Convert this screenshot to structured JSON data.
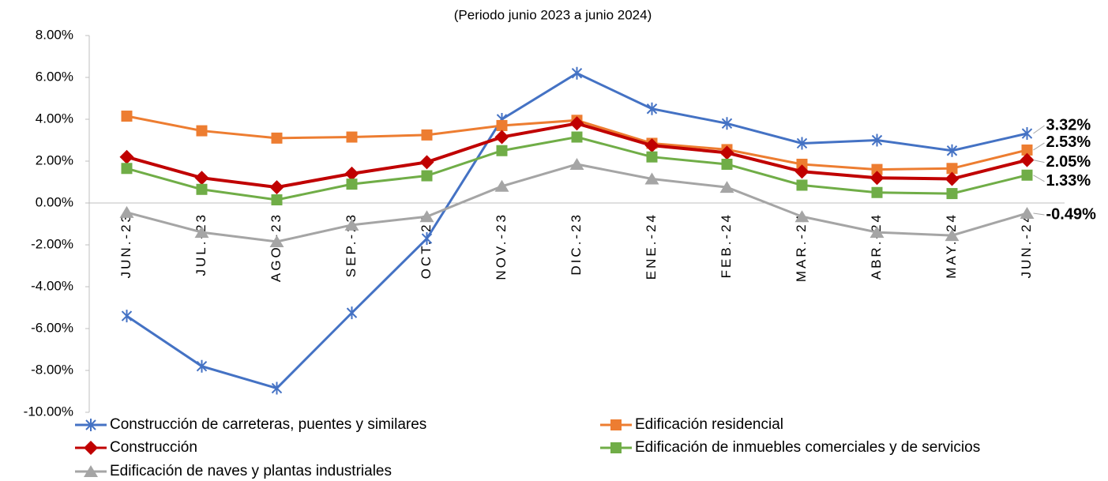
{
  "chart_data": {
    "type": "line",
    "title": "(Periodo junio 2023 a junio 2024)",
    "categories": [
      "JUN.-23",
      "JUL.-23",
      "AGO.-23",
      "SEP.-23",
      "OCT.-23",
      "NOV.-23",
      "DIC.-23",
      "ENE.-24",
      "FEB.-24",
      "MAR.-24",
      "ABR.-24",
      "MAY.-24",
      "JUN.-24"
    ],
    "ylim": [
      -10,
      8
    ],
    "yticks": [
      {
        "value": -10,
        "label": "-10.00%"
      },
      {
        "value": -8,
        "label": "-8.00%"
      },
      {
        "value": -6,
        "label": "-6.00%"
      },
      {
        "value": -4,
        "label": "-4.00%"
      },
      {
        "value": -2,
        "label": "-2.00%"
      },
      {
        "value": 0,
        "label": "0.00%"
      },
      {
        "value": 2,
        "label": "2.00%"
      },
      {
        "value": 4,
        "label": "4.00%"
      },
      {
        "value": 6,
        "label": "6.00%"
      },
      {
        "value": 8,
        "label": "8.00%"
      }
    ],
    "grid": false,
    "legend": "bottom",
    "series": [
      {
        "name": "Construcción de carreteras, puentes y similares",
        "color": "#4472c4",
        "marker": "star",
        "values": [
          -5.4,
          -7.8,
          -8.85,
          -5.25,
          -1.7,
          4.0,
          6.2,
          4.5,
          3.8,
          2.85,
          3.0,
          2.5,
          3.32
        ],
        "value_labels": [
          null,
          null,
          null,
          null,
          null,
          null,
          null,
          null,
          null,
          null,
          null,
          null,
          "3.32%"
        ]
      },
      {
        "name": "Edificación residencial",
        "color": "#ed7d31",
        "marker": "square",
        "values": [
          4.15,
          3.45,
          3.1,
          3.15,
          3.25,
          3.7,
          3.95,
          2.85,
          2.55,
          1.85,
          1.6,
          1.65,
          2.53
        ],
        "value_labels": [
          null,
          null,
          null,
          null,
          null,
          null,
          null,
          null,
          null,
          null,
          null,
          null,
          "2.53%"
        ]
      },
      {
        "name": "Construcción",
        "color": "#c00000",
        "marker": "diamond",
        "values": [
          2.2,
          1.2,
          0.75,
          1.4,
          1.95,
          3.15,
          3.8,
          2.75,
          2.4,
          1.5,
          1.2,
          1.15,
          2.05
        ],
        "value_labels": [
          null,
          null,
          null,
          null,
          null,
          null,
          null,
          null,
          null,
          null,
          null,
          null,
          "2.05%"
        ]
      },
      {
        "name": "Edificación de inmuebles comerciales y de servicios",
        "color": "#70ad47",
        "marker": "square",
        "values": [
          1.65,
          0.65,
          0.15,
          0.9,
          1.3,
          2.5,
          3.15,
          2.2,
          1.85,
          0.85,
          0.5,
          0.45,
          1.33
        ],
        "value_labels": [
          null,
          null,
          null,
          null,
          null,
          null,
          null,
          null,
          null,
          null,
          null,
          null,
          "1.33%"
        ]
      },
      {
        "name": "Edificación de naves y plantas industriales",
        "color": "#a5a5a5",
        "marker": "triangle",
        "values": [
          -0.45,
          -1.4,
          -1.85,
          -1.05,
          -0.65,
          0.8,
          1.85,
          1.15,
          0.75,
          -0.65,
          -1.4,
          -1.55,
          -0.49
        ],
        "value_labels": [
          null,
          null,
          null,
          null,
          null,
          null,
          null,
          null,
          null,
          null,
          null,
          null,
          "-0.49%"
        ]
      }
    ]
  }
}
